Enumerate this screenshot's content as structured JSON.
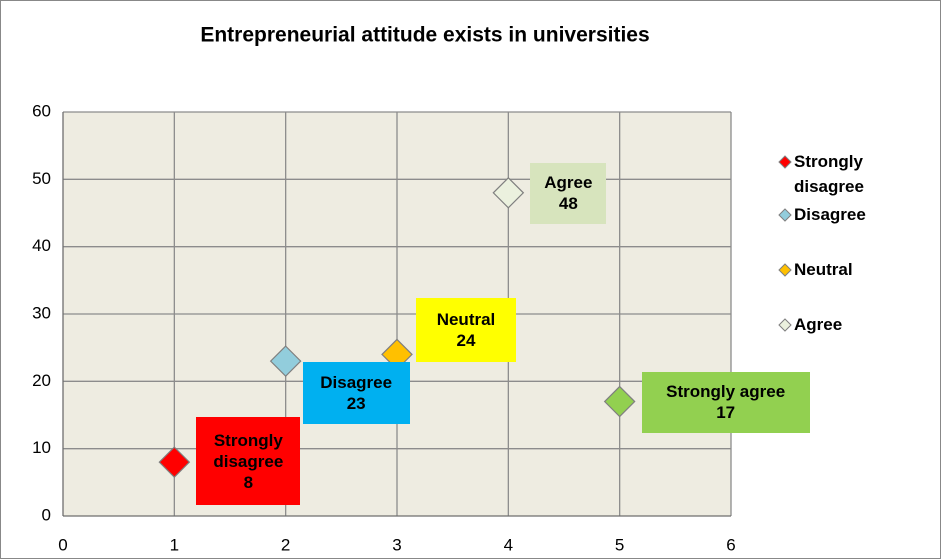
{
  "chart_data": {
    "type": "scatter",
    "title": "Entrepreneurial  attitude exists in universities",
    "xlim": [
      0,
      6
    ],
    "xticks": [
      0,
      1,
      2,
      3,
      4,
      5,
      6
    ],
    "ylim": [
      0,
      60
    ],
    "yticks": [
      0,
      10,
      20,
      30,
      40,
      50,
      60
    ],
    "grid": true,
    "legend": "right",
    "series": [
      {
        "name": "Strongly disagree",
        "color": "#ff0000",
        "label_color": "#ff0000",
        "x": [
          1
        ],
        "values": [
          8
        ]
      },
      {
        "name": "Disagree",
        "color": "#92cddc",
        "label_color": "#00b0f0",
        "x": [
          2
        ],
        "values": [
          23
        ]
      },
      {
        "name": "Neutral",
        "color": "#ffc000",
        "label_color": "#ffff00",
        "x": [
          3
        ],
        "values": [
          24
        ]
      },
      {
        "name": "Agree",
        "color": "#ebf1de",
        "label_color": "#d7e4bd",
        "x": [
          4
        ],
        "values": [
          48
        ]
      },
      {
        "name": "Strongly agree",
        "color": "#92d050",
        "label_color": "#92d050",
        "x": [
          5
        ],
        "values": [
          17
        ],
        "in_legend": false
      }
    ]
  }
}
